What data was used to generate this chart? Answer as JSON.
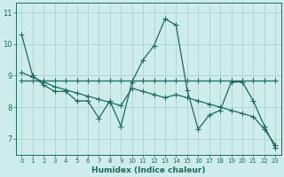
{
  "title": "",
  "xlabel": "Humidex (Indice chaleur)",
  "bg_color": "#ceecea",
  "grid_color": "#aad4d0",
  "line_color": "#1a6b60",
  "xlim": [
    -0.5,
    23.5
  ],
  "ylim": [
    6.5,
    11.3
  ],
  "yticks": [
    7,
    8,
    9,
    10,
    11
  ],
  "xticks": [
    0,
    1,
    2,
    3,
    4,
    5,
    6,
    7,
    8,
    9,
    10,
    11,
    12,
    13,
    14,
    15,
    16,
    17,
    18,
    19,
    20,
    21,
    22,
    23
  ],
  "series_jagged_x": [
    0,
    1,
    2,
    3,
    4,
    5,
    6,
    7,
    8,
    9,
    10,
    11,
    12,
    13,
    14,
    15,
    16,
    17,
    18,
    19,
    20,
    21,
    22,
    23
  ],
  "series_jagged_y": [
    10.3,
    9.0,
    8.7,
    8.5,
    8.5,
    8.2,
    8.2,
    7.65,
    8.2,
    7.4,
    8.8,
    9.5,
    9.95,
    10.8,
    10.6,
    8.55,
    7.3,
    7.75,
    7.9,
    8.8,
    8.8,
    8.2,
    7.4,
    6.7
  ],
  "series_flat_x": [
    0,
    1,
    2,
    3,
    4,
    5,
    6,
    7,
    8,
    9,
    10,
    11,
    12,
    13,
    14,
    15,
    16,
    17,
    18,
    19,
    20,
    21,
    22,
    23
  ],
  "series_flat_y": [
    8.85,
    8.85,
    8.85,
    8.85,
    8.85,
    8.85,
    8.85,
    8.85,
    8.85,
    8.85,
    8.85,
    8.85,
    8.85,
    8.85,
    8.85,
    8.85,
    8.85,
    8.85,
    8.85,
    8.85,
    8.85,
    8.85,
    8.85,
    8.85
  ],
  "series_trend_x": [
    0,
    1,
    2,
    3,
    4,
    5,
    6,
    7,
    8,
    9,
    10,
    11,
    12,
    13,
    14,
    15,
    16,
    17,
    18,
    19,
    20,
    21,
    22,
    23
  ],
  "series_trend_y": [
    9.1,
    8.95,
    8.8,
    8.65,
    8.55,
    8.45,
    8.35,
    8.25,
    8.15,
    8.05,
    8.6,
    8.5,
    8.4,
    8.3,
    8.4,
    8.3,
    8.2,
    8.1,
    8.0,
    7.9,
    7.8,
    7.7,
    7.3,
    6.8
  ],
  "marker": "+",
  "markersize": 4,
  "linewidth": 0.9
}
